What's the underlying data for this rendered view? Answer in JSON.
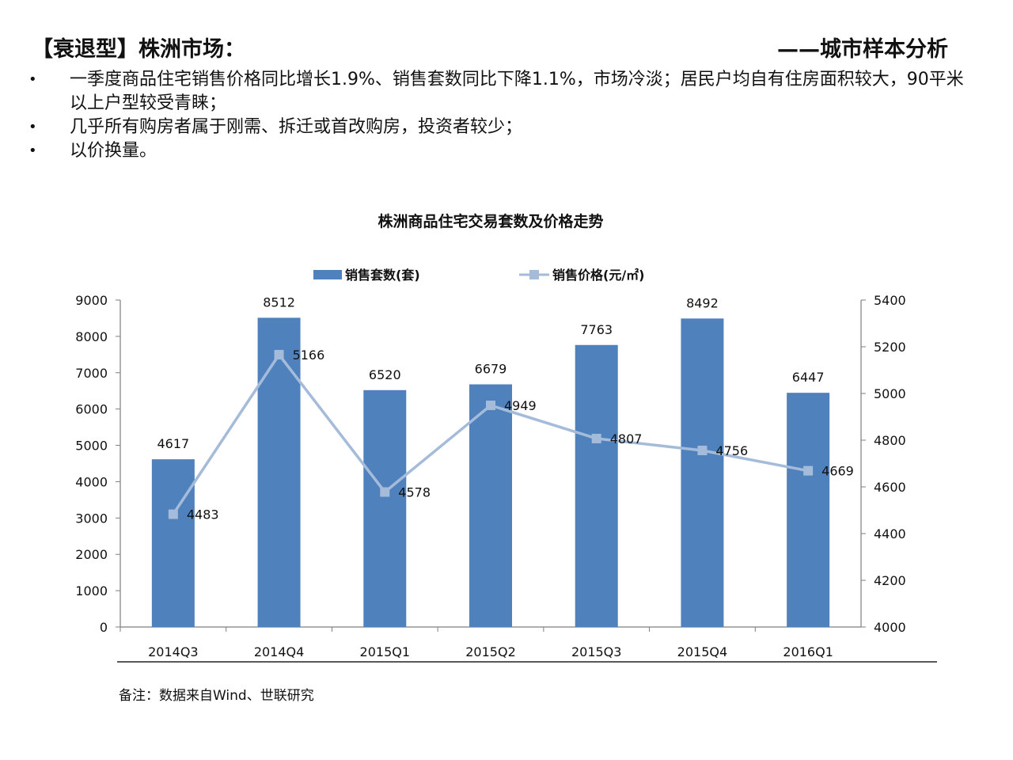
{
  "header": {
    "title": "【衰退型】株洲市场：",
    "subtitle": "——城市样本分析"
  },
  "bullets": [
    "一季度商品住宅销售价格同比增长1.9%、销售套数同比下降1.1%，市场冷淡；居民户均自有住房面积较大，90平米以上户型较受青睐；",
    "几乎所有购房者属于刚需、拆迁或首改购房，投资者较少；",
    "以价换量。"
  ],
  "note": "备注：数据来自Wind、世联研究",
  "chart_data": {
    "type": "bar",
    "title": "株洲商品住宅交易套数及价格走势",
    "categories": [
      "2014Q3",
      "2014Q4",
      "2015Q1",
      "2015Q2",
      "2015Q3",
      "2015Q4",
      "2016Q1"
    ],
    "series": [
      {
        "name": "销售套数(套)",
        "type": "bar",
        "axis": "left",
        "color": "#4f81bd",
        "values": [
          4617,
          8512,
          6520,
          6679,
          7763,
          8492,
          6447
        ]
      },
      {
        "name": "销售价格(元/㎡)",
        "type": "line",
        "axis": "right",
        "color": "#a5bbda",
        "values": [
          4483,
          5166,
          4578,
          4949,
          4807,
          4756,
          4669
        ]
      }
    ],
    "y_left": {
      "min": 0,
      "max": 9000,
      "ticks": [
        0,
        1000,
        2000,
        3000,
        4000,
        5000,
        6000,
        7000,
        8000,
        9000
      ]
    },
    "y_right": {
      "min": 4000,
      "max": 5400,
      "ticks": [
        4000,
        4200,
        4400,
        4600,
        4800,
        5000,
        5200,
        5400
      ]
    },
    "legend_position": "top",
    "grid": false
  }
}
